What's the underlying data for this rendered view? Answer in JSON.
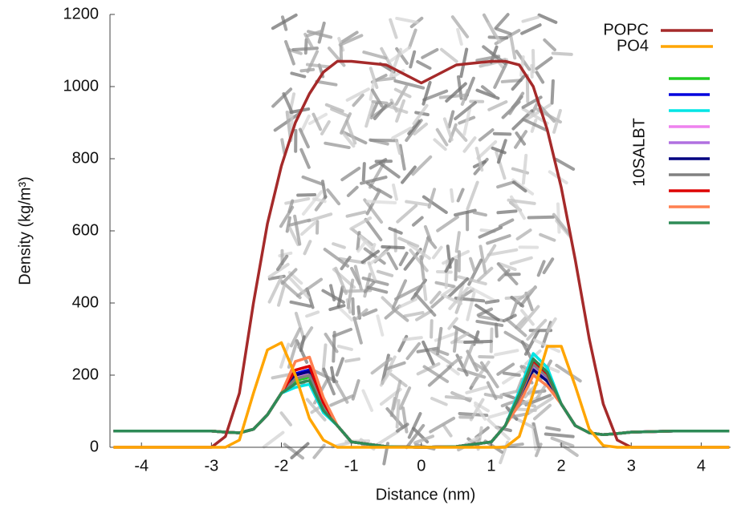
{
  "chart_data": {
    "type": "line",
    "xlabel": "Distance (nm)",
    "ylabel": "Density (kg/m³)",
    "legend_group_label": "10SALBT",
    "legend": "upper right",
    "xlim": [
      -4.45,
      4.42
    ],
    "ylim": [
      0,
      1200
    ],
    "xticks": [
      -4,
      -3,
      -2,
      -1,
      0,
      1,
      2,
      3,
      4
    ],
    "yticks": [
      0,
      200,
      400,
      600,
      800,
      1000,
      1200
    ],
    "x": [
      -4.4,
      -3.6,
      -3.0,
      -2.8,
      -2.6,
      -2.4,
      -2.2,
      -2.0,
      -1.8,
      -1.6,
      -1.4,
      -1.2,
      -1.0,
      -0.5,
      0,
      0.5,
      1.0,
      1.2,
      1.4,
      1.6,
      1.8,
      2.0,
      2.2,
      2.4,
      2.6,
      2.8,
      3.0,
      3.6,
      4.4
    ],
    "series": [
      {
        "name": "POPC",
        "color": "#a52a2a",
        "values": [
          0,
          0,
          0,
          30,
          150,
          400,
          620,
          780,
          900,
          980,
          1040,
          1070,
          1070,
          1060,
          1010,
          1060,
          1070,
          1070,
          1060,
          1000,
          880,
          720,
          520,
          300,
          120,
          20,
          0,
          0,
          0
        ]
      },
      {
        "name": "PO4",
        "color": "#ffa500",
        "values": [
          0,
          0,
          0,
          0,
          20,
          150,
          270,
          290,
          200,
          80,
          20,
          0,
          0,
          0,
          0,
          0,
          0,
          0,
          30,
          150,
          280,
          280,
          170,
          50,
          5,
          0,
          0,
          0,
          0
        ]
      },
      {
        "color": "#22cc22",
        "values": [
          45,
          45,
          45,
          42,
          40,
          50,
          90,
          150,
          185,
          195,
          107,
          60,
          15,
          2,
          0,
          2,
          15,
          60,
          138,
          230,
          196,
          120,
          60,
          40,
          35,
          38,
          42,
          45,
          45
        ]
      },
      {
        "color": "#0000dd",
        "values": [
          45,
          45,
          45,
          42,
          40,
          50,
          90,
          150,
          204,
          215,
          118,
          60,
          15,
          2,
          0,
          2,
          15,
          60,
          132,
          220,
          187,
          120,
          60,
          40,
          35,
          38,
          42,
          45,
          45
        ]
      },
      {
        "color": "#00e5e5",
        "values": [
          45,
          45,
          45,
          42,
          40,
          50,
          90,
          150,
          166,
          175,
          96,
          60,
          15,
          2,
          0,
          2,
          15,
          60,
          156,
          260,
          221,
          120,
          60,
          40,
          35,
          38,
          42,
          45,
          45
        ]
      },
      {
        "color": "#ee82ee",
        "values": [
          45,
          45,
          45,
          42,
          40,
          50,
          90,
          150,
          195,
          205,
          113,
          60,
          15,
          2,
          0,
          2,
          15,
          60,
          141,
          235,
          200,
          120,
          60,
          40,
          35,
          38,
          42,
          45,
          45
        ]
      },
      {
        "color": "#b070e0",
        "values": [
          45,
          45,
          45,
          42,
          40,
          50,
          90,
          150,
          190,
          200,
          110,
          60,
          15,
          2,
          0,
          2,
          15,
          60,
          135,
          225,
          191,
          120,
          60,
          40,
          35,
          38,
          42,
          45,
          45
        ]
      },
      {
        "color": "#000080",
        "values": [
          45,
          45,
          45,
          42,
          40,
          50,
          90,
          150,
          200,
          210,
          116,
          60,
          15,
          2,
          0,
          2,
          15,
          60,
          129,
          215,
          183,
          120,
          60,
          40,
          35,
          38,
          42,
          45,
          45
        ]
      },
      {
        "color": "#808080",
        "values": [
          45,
          45,
          45,
          42,
          40,
          50,
          90,
          150,
          190,
          200,
          110,
          60,
          15,
          2,
          0,
          2,
          15,
          60,
          138,
          230,
          196,
          120,
          60,
          40,
          35,
          38,
          42,
          45,
          45
        ]
      },
      {
        "color": "#dd0000",
        "values": [
          45,
          45,
          45,
          42,
          40,
          50,
          90,
          150,
          214,
          225,
          124,
          60,
          15,
          2,
          0,
          2,
          15,
          60,
          144,
          240,
          204,
          120,
          60,
          40,
          35,
          38,
          42,
          45,
          45
        ]
      },
      {
        "color": "#ff8050",
        "values": [
          45,
          45,
          45,
          42,
          40,
          50,
          90,
          150,
          238,
          250,
          138,
          60,
          15,
          2,
          0,
          2,
          15,
          60,
          120,
          200,
          170,
          120,
          60,
          40,
          35,
          38,
          42,
          45,
          45
        ]
      },
      {
        "color": "#2e8b57",
        "values": [
          45,
          45,
          45,
          42,
          40,
          50,
          90,
          150,
          176,
          185,
          102,
          60,
          15,
          2,
          0,
          2,
          15,
          60,
          147,
          245,
          208,
          120,
          60,
          40,
          35,
          38,
          42,
          45,
          45
        ]
      }
    ]
  }
}
